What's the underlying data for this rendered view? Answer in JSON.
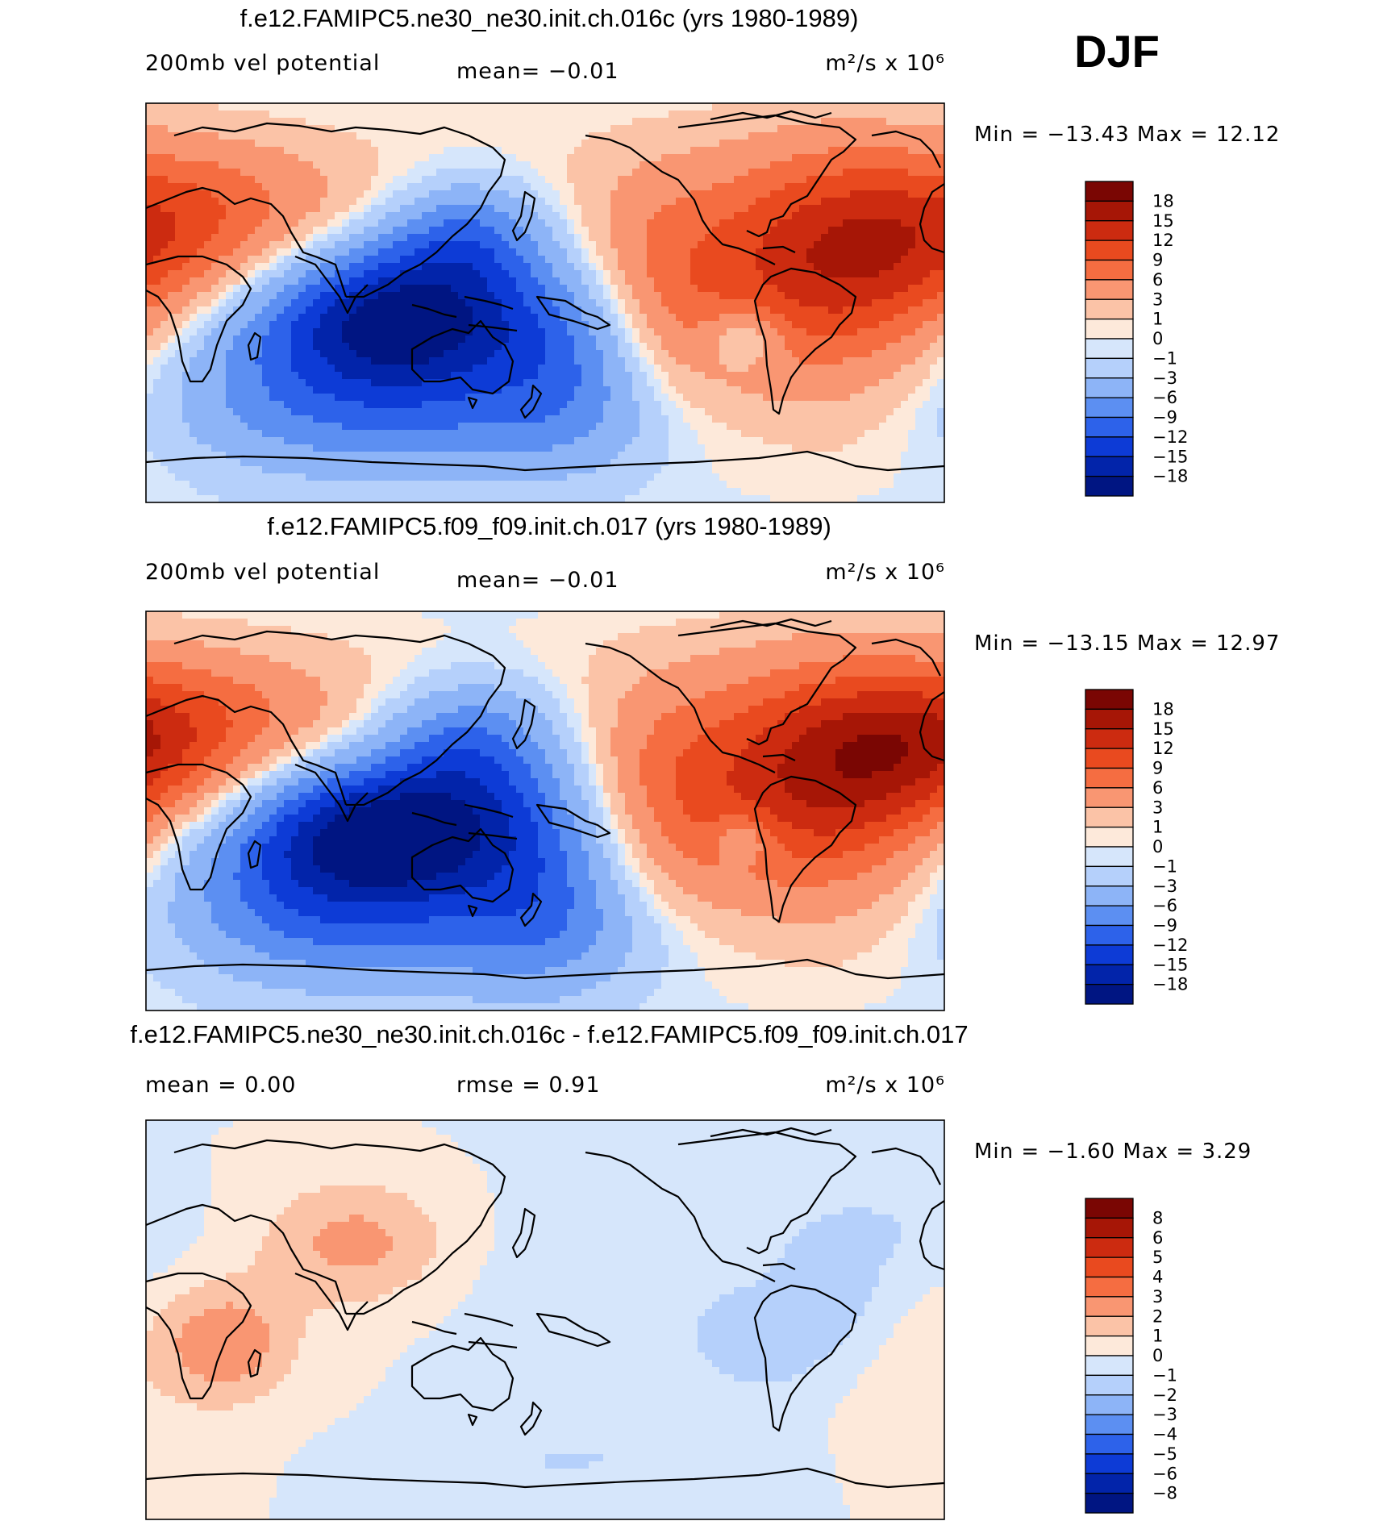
{
  "season": "DJF",
  "colors": {
    "red": [
      "#fde9da",
      "#fbc3a7",
      "#f99672",
      "#f56d41",
      "#e94a1f",
      "#cc2b10",
      "#a61606",
      "#7a0603"
    ],
    "blue": [
      "#d6e6fb",
      "#b5d0fb",
      "#8db4f7",
      "#5c8ff2",
      "#2d62ea",
      "#0d3bd6",
      "#0224aa",
      "#001582"
    ]
  },
  "panels": [
    {
      "id": "p1",
      "title": "f.e12.FAMIPC5.ne30_ne30.init.ch.016c (yrs 1980-1989)",
      "left_label": "200mb vel potential",
      "mid_label": "mean=   −0.01",
      "units": "m²/s x 10⁶",
      "minmax": "Min = −13.43 Max =   12.12",
      "levels": [
        "18",
        "15",
        "12",
        "9",
        "6",
        "3",
        "1",
        "0",
        "−1",
        "−3",
        "−6",
        "−9",
        "−12",
        "−15",
        "−18"
      ],
      "field": {
        "base": 4,
        "blobs": [
          {
            "lon": 30,
            "lat": 28,
            "amp": 9,
            "sx": 40,
            "sy": 28
          },
          {
            "lon": -25,
            "lat": 20,
            "amp": 10,
            "sx": 35,
            "sy": 35
          },
          {
            "lon": -95,
            "lat": 10,
            "amp": 6,
            "sx": 30,
            "sy": 35
          },
          {
            "lon": 80,
            "lat": 45,
            "amp": 3,
            "sx": 40,
            "sy": 20
          },
          {
            "lon": 150,
            "lat": -8,
            "amp": -19,
            "sx": 38,
            "sy": 24
          },
          {
            "lon": 175,
            "lat": 30,
            "amp": -8,
            "sx": 25,
            "sy": 18
          },
          {
            "lon": 90,
            "lat": -20,
            "amp": -8,
            "sx": 45,
            "sy": 30
          },
          {
            "lon": -140,
            "lat": -20,
            "amp": -9,
            "sx": 30,
            "sy": 30
          },
          {
            "lon": 160,
            "lat": -55,
            "amp": -6,
            "sx": 70,
            "sy": 20
          },
          {
            "lon": -60,
            "lat": -15,
            "amp": -6,
            "sx": 12,
            "sy": 10
          }
        ]
      }
    },
    {
      "id": "p2",
      "title": "f.e12.FAMIPC5.f09_f09.init.ch.017 (yrs 1980-1989)",
      "left_label": "200mb vel potential",
      "mid_label": "mean=   −0.01",
      "units": "m²/s x 10⁶",
      "minmax": "Min = −13.15 Max =   12.97",
      "levels": [
        "18",
        "15",
        "12",
        "9",
        "6",
        "3",
        "1",
        "0",
        "−1",
        "−3",
        "−6",
        "−9",
        "−12",
        "−15",
        "−18"
      ],
      "field": {
        "base": 4,
        "blobs": [
          {
            "lon": 25,
            "lat": 30,
            "amp": 11,
            "sx": 38,
            "sy": 25
          },
          {
            "lon": -25,
            "lat": 15,
            "amp": 11,
            "sx": 35,
            "sy": 35
          },
          {
            "lon": -90,
            "lat": 10,
            "amp": 6,
            "sx": 30,
            "sy": 35
          },
          {
            "lon": 80,
            "lat": 45,
            "amp": 3,
            "sx": 40,
            "sy": 20
          },
          {
            "lon": 145,
            "lat": -10,
            "amp": -19,
            "sx": 40,
            "sy": 22
          },
          {
            "lon": 175,
            "lat": 30,
            "amp": -9,
            "sx": 28,
            "sy": 20
          },
          {
            "lon": 95,
            "lat": -25,
            "amp": -9,
            "sx": 45,
            "sy": 30
          },
          {
            "lon": -150,
            "lat": -25,
            "amp": -8,
            "sx": 30,
            "sy": 35
          },
          {
            "lon": 160,
            "lat": -55,
            "amp": -6,
            "sx": 70,
            "sy": 20
          },
          {
            "lon": -60,
            "lat": -12,
            "amp": -5,
            "sx": 10,
            "sy": 8
          }
        ]
      }
    },
    {
      "id": "p3",
      "title": "f.e12.FAMIPC5.ne30_ne30.init.ch.016c - f.e12.FAMIPC5.f09_f09.init.ch.017",
      "left_label": "mean =    0.00",
      "mid_label": "rmse =    0.91",
      "units": "m²/s x 10⁶",
      "minmax": "Min =  −1.60 Max =    3.29",
      "levels": [
        "8",
        "6",
        "5",
        "4",
        "3",
        "2",
        "1",
        "0",
        "−1",
        "−2",
        "−3",
        "−4",
        "−5",
        "−6",
        "−8"
      ],
      "field": {
        "base": 0.35,
        "blobs": [
          {
            "lon": 125,
            "lat": 35,
            "amp": 2.3,
            "sx": 30,
            "sy": 20
          },
          {
            "lon": 65,
            "lat": -10,
            "amp": 2.6,
            "sx": 22,
            "sy": 18
          },
          {
            "lon": 20,
            "lat": -35,
            "amp": 0.5,
            "sx": 40,
            "sy": 30
          },
          {
            "lon": -100,
            "lat": 0,
            "amp": -1.0,
            "sx": 70,
            "sy": 45
          },
          {
            "lon": -45,
            "lat": -10,
            "amp": -1.3,
            "sx": 20,
            "sy": 15
          },
          {
            "lon": 0,
            "lat": 40,
            "amp": -1.0,
            "sx": 35,
            "sy": 20
          },
          {
            "lon": -20,
            "lat": 10,
            "amp": -1.0,
            "sx": 15,
            "sy": 15
          },
          {
            "lon": -150,
            "lat": -65,
            "amp": -0.8,
            "sx": 60,
            "sy": 15
          }
        ]
      }
    }
  ]
}
